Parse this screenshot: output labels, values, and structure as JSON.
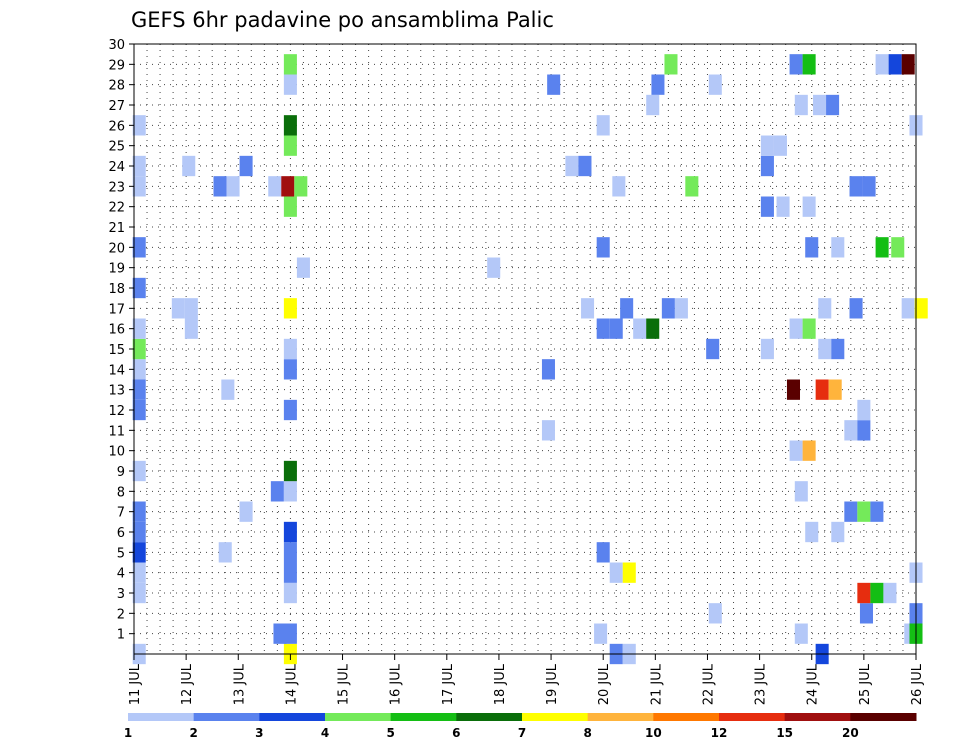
{
  "chart_data": {
    "type": "heatmap",
    "title": "GEFS 6hr padavine po ansamblima Palic",
    "xlabel": "",
    "ylabel": "",
    "x_tick_labels": [
      "11 JUL",
      "12 JUL",
      "13 JUL",
      "14 JUL",
      "15 JUL",
      "16 JUL",
      "17 JUL",
      "18 JUL",
      "19 JUL",
      "20 JUL",
      "21 JUL",
      "22 JUL",
      "23 JUL",
      "24 JUL",
      "25 JUL",
      "26 JUL"
    ],
    "y_tick_labels": [
      "1",
      "2",
      "3",
      "4",
      "5",
      "6",
      "7",
      "8",
      "9",
      "10",
      "11",
      "12",
      "13",
      "14",
      "15",
      "16",
      "17",
      "18",
      "19",
      "20",
      "21",
      "22",
      "23",
      "24",
      "25",
      "26",
      "27",
      "28",
      "29",
      "30"
    ],
    "xlim": [
      0,
      15
    ],
    "ylim": [
      0,
      30
    ],
    "grid": true,
    "legend": "bottom",
    "colorbar": {
      "levels": [
        "1",
        "2",
        "3",
        "4",
        "5",
        "6",
        "7",
        "8",
        "10",
        "12",
        "15",
        "20"
      ],
      "colors": [
        "#b4c8f8",
        "#5a82ee",
        "#1446dc",
        "#74ea5a",
        "#14be14",
        "#0a6e0a",
        "#ffff00",
        "#ffb43c",
        "#ff7800",
        "#e62d0f",
        "#a00f0f",
        "#5a0000"
      ]
    },
    "cells": [
      [
        0.1,
        0,
        0
      ],
      [
        3.0,
        0,
        6
      ],
      [
        9.25,
        0,
        1
      ],
      [
        9.5,
        0,
        0
      ],
      [
        13.2,
        0,
        2
      ],
      [
        2.8,
        1,
        1
      ],
      [
        3.0,
        1,
        1
      ],
      [
        8.95,
        1,
        0
      ],
      [
        14.9,
        1,
        0
      ],
      [
        15.0,
        1,
        4
      ],
      [
        12.8,
        1,
        0
      ],
      [
        11.15,
        2,
        0
      ],
      [
        14.05,
        2,
        1
      ],
      [
        15.0,
        2,
        1
      ],
      [
        0.1,
        3,
        0
      ],
      [
        3.0,
        3,
        0
      ],
      [
        14.0,
        3,
        9
      ],
      [
        14.25,
        3,
        4
      ],
      [
        14.5,
        3,
        0
      ],
      [
        0.1,
        4,
        0
      ],
      [
        3.0,
        4,
        1
      ],
      [
        9.25,
        4,
        0
      ],
      [
        9.5,
        4,
        6
      ],
      [
        15.0,
        4,
        0
      ],
      [
        0.1,
        5,
        2
      ],
      [
        1.75,
        5,
        0
      ],
      [
        3.0,
        5,
        1
      ],
      [
        9.0,
        5,
        1
      ],
      [
        0.1,
        6,
        1
      ],
      [
        3.0,
        6,
        2
      ],
      [
        13.0,
        6,
        0
      ],
      [
        13.5,
        6,
        0
      ],
      [
        0.1,
        7,
        1
      ],
      [
        2.15,
        7,
        0
      ],
      [
        13.75,
        7,
        1
      ],
      [
        14.0,
        7,
        3
      ],
      [
        14.25,
        7,
        1
      ],
      [
        2.75,
        8,
        1
      ],
      [
        3.0,
        8,
        0
      ],
      [
        12.8,
        8,
        0
      ],
      [
        0.1,
        9,
        0
      ],
      [
        3.0,
        9,
        5
      ],
      [
        12.7,
        10,
        0
      ],
      [
        12.95,
        10,
        7
      ],
      [
        7.95,
        11,
        0
      ],
      [
        13.75,
        11,
        0
      ],
      [
        14.0,
        11,
        1
      ],
      [
        0.1,
        12,
        1
      ],
      [
        3.0,
        12,
        1
      ],
      [
        14.0,
        12,
        0
      ],
      [
        0.1,
        13,
        1
      ],
      [
        1.8,
        13,
        0
      ],
      [
        12.65,
        13,
        11
      ],
      [
        13.2,
        13,
        9
      ],
      [
        13.45,
        13,
        7
      ],
      [
        0.1,
        14,
        0
      ],
      [
        3.0,
        14,
        1
      ],
      [
        7.95,
        14,
        1
      ],
      [
        0.1,
        15,
        3
      ],
      [
        3.0,
        15,
        0
      ],
      [
        11.1,
        15,
        1
      ],
      [
        12.15,
        15,
        0
      ],
      [
        13.25,
        15,
        0
      ],
      [
        13.5,
        15,
        1
      ],
      [
        0.1,
        16,
        0
      ],
      [
        1.1,
        16,
        0
      ],
      [
        9.0,
        16,
        1
      ],
      [
        9.25,
        16,
        1
      ],
      [
        9.7,
        16,
        0
      ],
      [
        9.95,
        16,
        5
      ],
      [
        12.7,
        16,
        0
      ],
      [
        12.95,
        16,
        3
      ],
      [
        0.85,
        17,
        0
      ],
      [
        1.1,
        17,
        0
      ],
      [
        3.0,
        17,
        6
      ],
      [
        8.7,
        17,
        0
      ],
      [
        9.45,
        17,
        1
      ],
      [
        10.25,
        17,
        1
      ],
      [
        10.5,
        17,
        0
      ],
      [
        13.25,
        17,
        0
      ],
      [
        13.85,
        17,
        1
      ],
      [
        14.85,
        17,
        0
      ],
      [
        15.1,
        17,
        6
      ],
      [
        0.1,
        18,
        1
      ],
      [
        3.25,
        19,
        0
      ],
      [
        6.9,
        19,
        0
      ],
      [
        0.1,
        20,
        1
      ],
      [
        9.0,
        20,
        1
      ],
      [
        13.0,
        20,
        1
      ],
      [
        13.5,
        20,
        0
      ],
      [
        14.35,
        20,
        4
      ],
      [
        14.65,
        20,
        3
      ],
      [
        3.0,
        22,
        3
      ],
      [
        12.15,
        22,
        1
      ],
      [
        12.45,
        22,
        0
      ],
      [
        12.95,
        22,
        0
      ],
      [
        0.1,
        23,
        0
      ],
      [
        1.65,
        23,
        1
      ],
      [
        1.9,
        23,
        0
      ],
      [
        2.7,
        23,
        0
      ],
      [
        2.95,
        23,
        10
      ],
      [
        3.2,
        23,
        3
      ],
      [
        9.3,
        23,
        0
      ],
      [
        10.7,
        23,
        3
      ],
      [
        13.85,
        23,
        1
      ],
      [
        14.1,
        23,
        1
      ],
      [
        0.1,
        24,
        0
      ],
      [
        1.05,
        24,
        0
      ],
      [
        2.15,
        24,
        1
      ],
      [
        8.4,
        24,
        0
      ],
      [
        8.65,
        24,
        1
      ],
      [
        12.15,
        24,
        1
      ],
      [
        3.0,
        25,
        3
      ],
      [
        12.15,
        25,
        0
      ],
      [
        12.4,
        25,
        0
      ],
      [
        0.1,
        26,
        0
      ],
      [
        3.0,
        26,
        5
      ],
      [
        9.0,
        26,
        0
      ],
      [
        15.0,
        26,
        0
      ],
      [
        9.95,
        27,
        0
      ],
      [
        12.8,
        27,
        0
      ],
      [
        13.15,
        27,
        0
      ],
      [
        13.4,
        27,
        1
      ],
      [
        3.0,
        28,
        0
      ],
      [
        8.05,
        28,
        1
      ],
      [
        10.05,
        28,
        1
      ],
      [
        11.15,
        28,
        0
      ],
      [
        3.0,
        29,
        3
      ],
      [
        10.3,
        29,
        3
      ],
      [
        12.7,
        29,
        1
      ],
      [
        12.95,
        29,
        4
      ],
      [
        14.35,
        29,
        0
      ],
      [
        14.6,
        29,
        2
      ],
      [
        14.85,
        29,
        11
      ]
    ]
  }
}
